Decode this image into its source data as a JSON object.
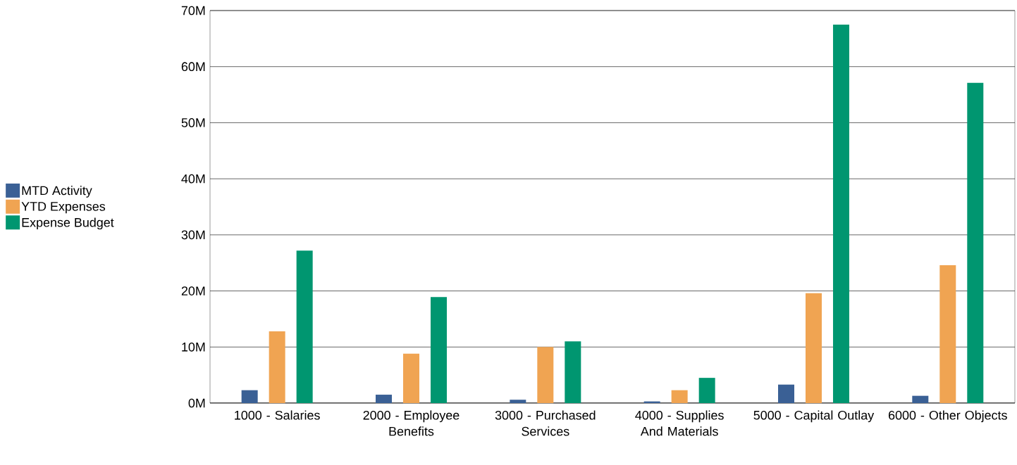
{
  "chart_data": {
    "type": "bar",
    "categories": [
      "1000 - Salaries",
      "2000 - Employee Benefits",
      "3000 - Purchased Services",
      "4000 - Supplies And Materials",
      "5000 - Capital Outlay",
      "6000 - Other Objects"
    ],
    "series": [
      {
        "name": "MTD Activity",
        "color": "#3a6095",
        "values": [
          2300000,
          1500000,
          600000,
          300000,
          3300000,
          1300000
        ]
      },
      {
        "name": "YTD Expenses",
        "color": "#f0a452",
        "values": [
          12800000,
          8800000,
          10000000,
          2300000,
          19600000,
          24600000
        ]
      },
      {
        "name": "Expense Budget",
        "color": "#009670",
        "values": [
          27200000,
          18900000,
          11000000,
          4500000,
          67500000,
          57100000
        ]
      }
    ],
    "ylim": [
      0,
      70000000
    ],
    "yticks": [
      {
        "value": 0,
        "label": "0M"
      },
      {
        "value": 10000000,
        "label": "10M"
      },
      {
        "value": 20000000,
        "label": "20M"
      },
      {
        "value": 30000000,
        "label": "30M"
      },
      {
        "value": 40000000,
        "label": "40M"
      },
      {
        "value": 50000000,
        "label": "50M"
      },
      {
        "value": 60000000,
        "label": "60M"
      },
      {
        "value": 70000000,
        "label": "70M"
      }
    ],
    "grid": "y",
    "legend": "left"
  }
}
